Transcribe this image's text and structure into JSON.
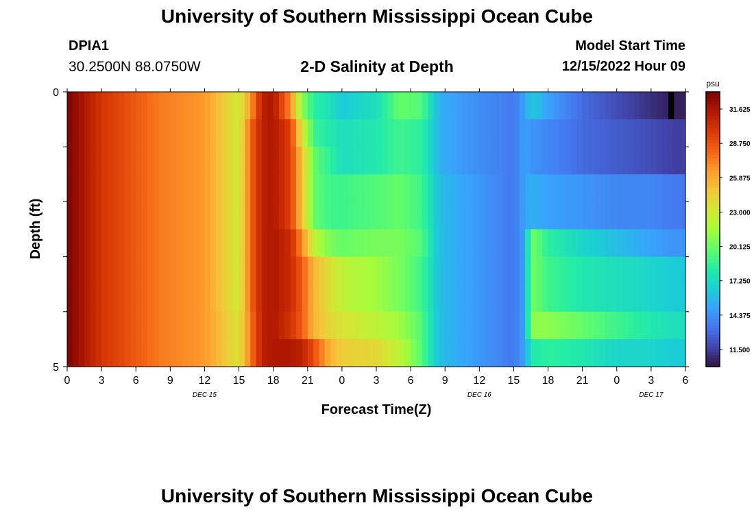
{
  "header": {
    "title": "University of Southern Mississippi Ocean Cube",
    "station_id": "DPIA1",
    "station_coords": "30.2500N  88.0750W",
    "plot_title": "2-D Salinity at Depth",
    "model_start_label": "Model Start Time",
    "model_start_value": "12/15/2022 Hour 09"
  },
  "footer": {
    "title": "University of Southern Mississippi Ocean Cube"
  },
  "chart_data": {
    "type": "heatmap",
    "title": "2-D Salinity at Depth",
    "xlabel": "Forecast Time(Z)",
    "ylabel": "Depth (ft)",
    "x_tick_labels": [
      "0",
      "3",
      "6",
      "9",
      "12",
      "15",
      "18",
      "21",
      "0",
      "3",
      "6",
      "9",
      "12",
      "15",
      "18",
      "21",
      "0",
      "3",
      "6"
    ],
    "x_day_labels": [
      {
        "label": "DEC 15",
        "hour": 12
      },
      {
        "label": "DEC 16",
        "hour": 36
      },
      {
        "label": "DEC 17",
        "hour": 51
      }
    ],
    "x_range_hours": [
      0,
      54
    ],
    "y_tick_labels": [
      "0",
      "5"
    ],
    "y_range_ft": [
      0,
      5
    ],
    "depth_levels_ft": [
      0.25,
      0.75,
      1.25,
      1.75,
      2.25,
      2.75,
      3.25,
      3.75,
      4.25,
      4.75
    ],
    "time_step_hours": 0.5,
    "colorbar": {
      "unit": "psu",
      "min": 10.0625,
      "max": 33.0625,
      "ticks": [
        "31.625",
        "28.750",
        "25.875",
        "23.000",
        "20.125",
        "17.250",
        "14.375",
        "11.500"
      ],
      "colors": [
        "#30123b",
        "#4145ab",
        "#4675ed",
        "#39a2fc",
        "#1bcfd4",
        "#24eca6",
        "#61fc6c",
        "#a4fc3b",
        "#d1e834",
        "#f3c63a",
        "#fe9b2d",
        "#f36315",
        "#d93806",
        "#b11901",
        "#7a0402"
      ]
    },
    "keyframes_note": "salinity (psu) by forecast hour for each depth level",
    "keyframes": [
      {
        "hour": 0,
        "values": [
          33.0,
          33.0,
          33.0,
          33.0,
          33.0,
          33.0,
          33.0,
          33.0,
          33.0,
          33.0
        ]
      },
      {
        "hour": 3,
        "values": [
          30.0,
          30.0,
          30.0,
          30.0,
          30.0,
          30.0,
          30.0,
          30.0,
          30.0,
          30.0
        ]
      },
      {
        "hour": 8,
        "values": [
          27.5,
          27.5,
          27.5,
          27.5,
          27.5,
          27.5,
          27.5,
          27.5,
          27.5,
          27.5
        ]
      },
      {
        "hour": 12,
        "values": [
          26.5,
          26.5,
          26.5,
          26.5,
          26.5,
          26.5,
          26.5,
          26.5,
          26.5,
          26.5
        ]
      },
      {
        "hour": 15,
        "values": [
          23.0,
          23.0,
          23.0,
          23.0,
          23.0,
          23.0,
          23.0,
          23.0,
          23.5,
          23.5
        ]
      },
      {
        "hour": 16,
        "values": [
          26.5,
          28.0,
          28.0,
          28.0,
          28.0,
          28.0,
          28.0,
          28.0,
          27.5,
          27.5
        ]
      },
      {
        "hour": 17,
        "values": [
          31.0,
          31.0,
          31.0,
          31.0,
          31.0,
          31.0,
          31.0,
          31.0,
          31.0,
          31.0
        ]
      },
      {
        "hour": 18,
        "values": [
          31.5,
          31.5,
          31.5,
          31.5,
          31.5,
          31.5,
          31.5,
          31.5,
          31.5,
          31.5
        ]
      },
      {
        "hour": 19.5,
        "values": [
          27.0,
          29.5,
          29.5,
          29.5,
          29.5,
          30.5,
          30.5,
          30.5,
          30.0,
          31.5
        ]
      },
      {
        "hour": 20.5,
        "values": [
          21.0,
          23.5,
          25.0,
          25.0,
          25.0,
          27.0,
          28.5,
          28.5,
          28.5,
          31.0
        ]
      },
      {
        "hour": 21.5,
        "values": [
          18.5,
          19.0,
          20.0,
          20.0,
          20.0,
          22.5,
          25.5,
          25.5,
          25.5,
          29.0
        ]
      },
      {
        "hour": 23,
        "values": [
          17.5,
          18.0,
          18.5,
          19.0,
          19.0,
          20.5,
          23.5,
          23.5,
          24.0,
          25.5
        ]
      },
      {
        "hour": 24,
        "values": [
          16.5,
          17.5,
          17.5,
          19.0,
          19.0,
          20.0,
          22.5,
          22.5,
          23.5,
          24.5
        ]
      },
      {
        "hour": 27,
        "values": [
          17.5,
          18.0,
          18.0,
          19.5,
          19.5,
          20.5,
          21.5,
          21.5,
          22.5,
          24.0
        ]
      },
      {
        "hour": 29,
        "values": [
          20.0,
          19.0,
          19.0,
          20.0,
          20.0,
          20.5,
          20.5,
          20.5,
          21.5,
          22.5
        ]
      },
      {
        "hour": 31,
        "values": [
          19.5,
          18.5,
          18.5,
          19.0,
          19.0,
          19.5,
          19.0,
          19.0,
          19.5,
          19.5
        ]
      },
      {
        "hour": 32.5,
        "values": [
          15.5,
          15.5,
          15.5,
          16.0,
          16.0,
          16.0,
          16.0,
          16.0,
          16.0,
          16.0
        ]
      },
      {
        "hour": 35,
        "values": [
          14.5,
          14.5,
          14.5,
          15.0,
          15.0,
          15.0,
          15.0,
          15.0,
          15.0,
          15.0
        ]
      },
      {
        "hour": 39,
        "values": [
          13.5,
          13.5,
          13.5,
          13.5,
          13.5,
          13.5,
          13.5,
          13.5,
          13.5,
          13.5
        ]
      },
      {
        "hour": 40,
        "values": [
          15.0,
          15.0,
          15.0,
          15.0,
          15.0,
          15.0,
          15.0,
          15.0,
          15.0,
          15.0
        ]
      },
      {
        "hour": 40.5,
        "values": [
          16.5,
          14.5,
          14.5,
          15.5,
          15.5,
          20.5,
          20.5,
          20.5,
          21.0,
          18.0
        ]
      },
      {
        "hour": 42,
        "values": [
          15.0,
          14.0,
          14.0,
          15.0,
          15.0,
          18.5,
          19.0,
          19.0,
          21.0,
          18.5
        ]
      },
      {
        "hour": 45,
        "values": [
          13.0,
          13.0,
          13.0,
          14.5,
          14.5,
          17.0,
          18.0,
          18.0,
          20.0,
          18.0
        ]
      },
      {
        "hour": 48,
        "values": [
          12.0,
          12.5,
          12.5,
          14.0,
          14.0,
          16.0,
          17.5,
          17.5,
          19.0,
          17.0
        ]
      },
      {
        "hour": 51,
        "values": [
          11.0,
          12.0,
          12.0,
          14.0,
          14.0,
          15.0,
          17.0,
          17.0,
          18.0,
          17.0
        ]
      },
      {
        "hour": 53,
        "values": [
          10.5,
          11.5,
          11.5,
          13.5,
          13.5,
          14.5,
          16.5,
          16.5,
          17.5,
          16.5
        ]
      },
      {
        "hour": 54,
        "values": [
          10.5,
          11.5,
          11.5,
          13.5,
          13.5,
          14.5,
          16.5,
          16.5,
          17.5,
          16.5
        ]
      }
    ],
    "missing": [
      {
        "hour": 52.5,
        "depth_ft": 0.25
      }
    ]
  }
}
